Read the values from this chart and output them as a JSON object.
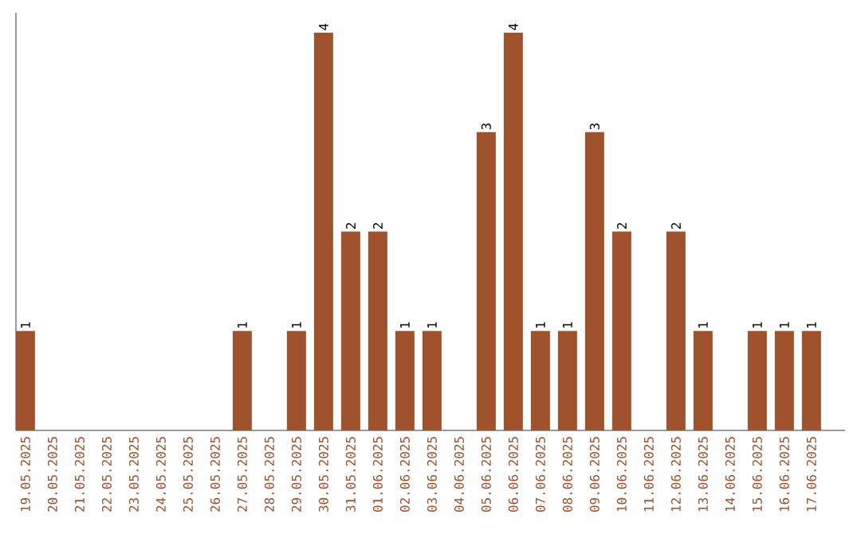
{
  "chart_data": {
    "type": "bar",
    "categories": [
      "19.05.2025",
      "20.05.2025",
      "21.05.2025",
      "22.05.2025",
      "23.05.2025",
      "24.05.2025",
      "25.05.2025",
      "26.05.2025",
      "27.05.2025",
      "28.05.2025",
      "29.05.2025",
      "30.05.2025",
      "31.05.2025",
      "01.06.2025",
      "02.06.2025",
      "03.06.2025",
      "04.06.2025",
      "05.06.2025",
      "06.06.2025",
      "07.06.2025",
      "08.06.2025",
      "09.06.2025",
      "10.06.2025",
      "11.06.2025",
      "12.06.2025",
      "13.06.2025",
      "14.06.2025",
      "15.06.2025",
      "16.06.2025",
      "17.06.2025"
    ],
    "values": [
      1,
      0,
      0,
      0,
      0,
      0,
      0,
      0,
      1,
      0,
      1,
      4,
      2,
      2,
      1,
      1,
      0,
      3,
      4,
      1,
      1,
      3,
      2,
      0,
      2,
      1,
      0,
      1,
      1,
      1
    ],
    "value_labels": [
      "1",
      null,
      null,
      null,
      null,
      null,
      null,
      null,
      "1",
      null,
      "1",
      "4",
      "2",
      "2",
      "1",
      "1",
      null,
      "3",
      "4",
      "1",
      "1",
      "3",
      "2",
      null,
      "2",
      "1",
      null,
      "1",
      "1",
      "1"
    ],
    "color": "#a0522d",
    "ylim": [
      0,
      4.2
    ],
    "tick_labels": "x",
    "grid": false
  }
}
